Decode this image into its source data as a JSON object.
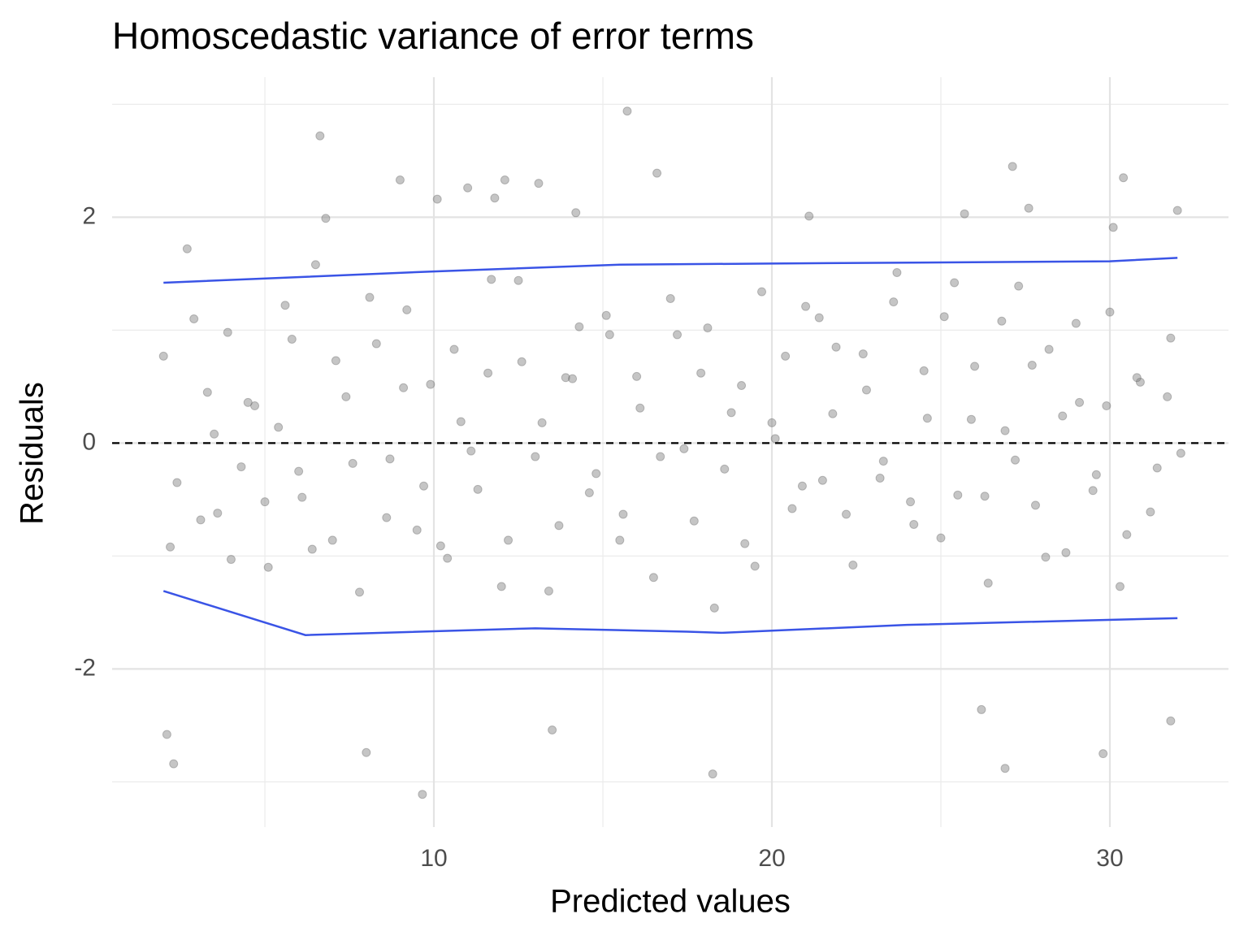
{
  "chart_data": {
    "type": "scatter",
    "title": "Homoscedastic variance of error terms",
    "x_label": "Predicted values",
    "y_label": "Residuals",
    "xlim": [
      0.48,
      33.51
    ],
    "ylim": [
      -3.4,
      3.24
    ],
    "xticks": [
      10,
      20,
      30
    ],
    "yticks": [
      -2,
      0,
      2
    ],
    "x_minor_grid": [
      5,
      15,
      25
    ],
    "y_minor_grid": [
      -3,
      -1,
      1,
      3
    ],
    "grid": true,
    "point_color": "#7f7f7f",
    "x": [
      15.72,
      6.63,
      9.66,
      18.25,
      27.12,
      30.4,
      2.1,
      2.3,
      26.9,
      29.8,
      13.5,
      8.0,
      31.8,
      26.2,
      16.6,
      9.0,
      12.1,
      13.1,
      10.1,
      11.0,
      11.8,
      14.2,
      21.1,
      25.7,
      27.6,
      32.0,
      30.1,
      6.8,
      2.0,
      2.4,
      2.9,
      3.3,
      3.6,
      3.9,
      4.3,
      4.7,
      5.1,
      5.4,
      5.8,
      6.1,
      6.5,
      7.0,
      7.4,
      7.8,
      8.3,
      8.7,
      9.2,
      9.5,
      9.9,
      10.4,
      10.8,
      11.3,
      11.7,
      12.2,
      12.6,
      13.0,
      13.4,
      13.9,
      14.3,
      14.8,
      15.2,
      15.6,
      16.1,
      16.5,
      17.0,
      17.4,
      17.9,
      18.3,
      18.8,
      19.2,
      19.7,
      20.1,
      20.6,
      21.0,
      21.5,
      21.9,
      22.4,
      22.8,
      23.3,
      23.7,
      24.2,
      24.6,
      25.1,
      25.5,
      26.0,
      26.4,
      26.9,
      27.3,
      27.8,
      28.2,
      28.7,
      29.1,
      29.6,
      30.0,
      30.5,
      30.9,
      31.4,
      31.8,
      2.2,
      2.7,
      3.1,
      3.5,
      4.0,
      4.5,
      5.0,
      5.6,
      6.0,
      6.4,
      7.1,
      7.6,
      8.1,
      8.6,
      9.1,
      9.7,
      10.2,
      10.6,
      11.1,
      11.6,
      12.0,
      12.5,
      13.2,
      13.7,
      14.1,
      14.6,
      15.1,
      15.5,
      16.0,
      16.7,
      17.2,
      17.7,
      18.1,
      18.6,
      19.1,
      19.5,
      20.0,
      20.4,
      20.9,
      21.4,
      21.8,
      22.2,
      22.7,
      23.2,
      23.6,
      24.1,
      24.5,
      25.0,
      25.4,
      25.9,
      26.3,
      26.8,
      27.2,
      27.7,
      28.1,
      28.6,
      29.0,
      29.5,
      29.9,
      30.3,
      30.8,
      31.2,
      31.7,
      32.1
    ],
    "y": [
      2.94,
      2.72,
      -3.11,
      -2.93,
      2.45,
      2.35,
      -2.58,
      -2.84,
      -2.88,
      -2.75,
      -2.54,
      -2.74,
      -2.46,
      -2.36,
      2.39,
      2.33,
      2.33,
      2.3,
      2.16,
      2.26,
      2.17,
      2.04,
      2.01,
      2.03,
      2.08,
      2.06,
      1.91,
      1.99,
      0.77,
      -0.35,
      1.1,
      0.45,
      -0.62,
      0.98,
      -0.21,
      0.33,
      -1.1,
      0.14,
      0.92,
      -0.48,
      1.58,
      -0.86,
      0.41,
      -1.32,
      0.88,
      -0.14,
      1.18,
      -0.77,
      0.52,
      -1.02,
      0.19,
      -0.41,
      1.45,
      -0.86,
      0.72,
      -0.12,
      -1.31,
      0.58,
      1.03,
      -0.27,
      0.96,
      -0.63,
      0.31,
      -1.19,
      1.28,
      -0.05,
      0.62,
      -1.46,
      0.27,
      -0.89,
      1.34,
      0.04,
      -0.58,
      1.21,
      -0.33,
      0.85,
      -1.08,
      0.47,
      -0.16,
      1.51,
      -0.72,
      0.22,
      1.12,
      -0.46,
      0.68,
      -1.24,
      0.11,
      1.39,
      -0.55,
      0.83,
      -0.97,
      0.36,
      -0.28,
      1.16,
      -0.81,
      0.54,
      -0.22,
      0.93,
      -0.92,
      1.72,
      -0.68,
      0.08,
      -1.03,
      0.36,
      -0.52,
      1.22,
      -0.25,
      -0.94,
      0.73,
      -0.18,
      1.29,
      -0.66,
      0.49,
      -0.38,
      -0.91,
      0.83,
      -0.07,
      0.62,
      -1.27,
      1.44,
      0.18,
      -0.73,
      0.57,
      -0.44,
      1.13,
      -0.86,
      0.59,
      -0.12,
      0.96,
      -0.69,
      1.02,
      -0.23,
      0.51,
      -1.09,
      0.18,
      0.77,
      -0.38,
      1.11,
      0.26,
      -0.63,
      0.79,
      -0.31,
      1.25,
      -0.52,
      0.64,
      -0.84,
      1.42,
      0.21,
      -0.47,
      1.08,
      -0.15,
      0.69,
      -1.01,
      0.24,
      1.06,
      -0.42,
      0.33,
      -1.27,
      0.58,
      -0.61,
      0.41,
      -0.09
    ],
    "quantile_lines": [
      {
        "color": "#3a54e6",
        "x": [
          2.0,
          10.0,
          15.5,
          20.0,
          30.0,
          32.0
        ],
        "y": [
          1.42,
          1.52,
          1.58,
          1.59,
          1.61,
          1.64
        ]
      },
      {
        "color": "#3a54e6",
        "x": [
          2.0,
          6.2,
          13.0,
          17.5,
          18.5,
          24.0,
          32.0
        ],
        "y": [
          -1.31,
          -1.7,
          -1.64,
          -1.67,
          -1.68,
          -1.61,
          -1.55
        ]
      }
    ],
    "hline": 0
  }
}
